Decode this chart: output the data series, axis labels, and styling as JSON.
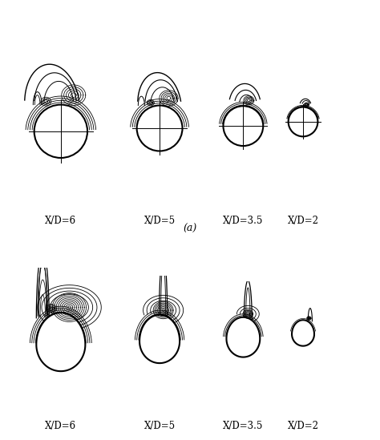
{
  "labels_top": [
    "X/D=6",
    "X/D=5",
    "X/D=3.5",
    "X/D=2"
  ],
  "labels_bottom": [
    "X/D=6",
    "X/D=5",
    "X/D=3.5",
    "X/D=2"
  ],
  "label_a": "(a)",
  "fig_width": 4.74,
  "fig_height": 5.49,
  "dpi": 100
}
